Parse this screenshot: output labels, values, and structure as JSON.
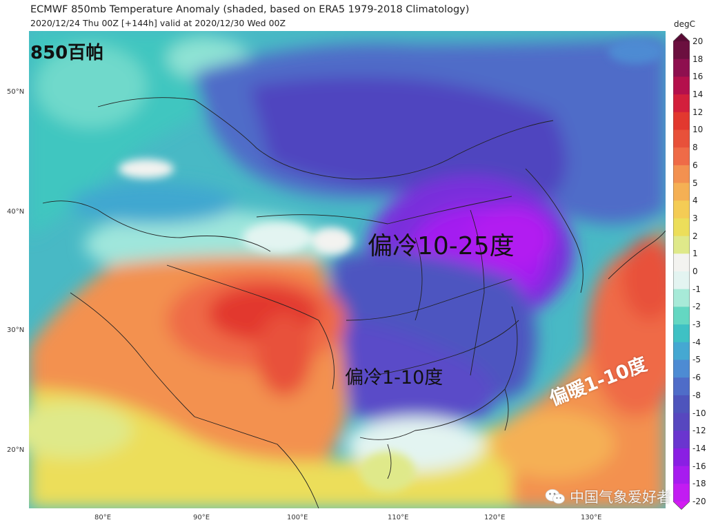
{
  "header": {
    "title": "ECMWF 850mb Temperature Anomaly (shaded, based on ERA5 1979-2018 Climatology)",
    "subtitle": "2020/12/24 Thu 00Z [+144h] valid at 2020/12/30 Wed 00Z"
  },
  "map": {
    "lat_labels": [
      "50°N",
      "40°N",
      "30°N",
      "20°N"
    ],
    "lon_labels": [
      "80°E",
      "90°E",
      "100°E",
      "110°E",
      "120°E",
      "130°E"
    ]
  },
  "colorbar": {
    "unit": "degC",
    "ticks": [
      "20",
      "18",
      "16",
      "14",
      "12",
      "10",
      "8",
      "6",
      "5",
      "4",
      "3",
      "2",
      "1",
      "0",
      "-1",
      "-2",
      "-3",
      "-4",
      "-5",
      "-6",
      "-8",
      "-10",
      "-12",
      "-14",
      "-16",
      "-18",
      "-20"
    ],
    "colors": [
      "#6b0f3f",
      "#8e0f4f",
      "#b4104c",
      "#d31f3c",
      "#e2382f",
      "#e8513a",
      "#ef6b47",
      "#f39150",
      "#f5b054",
      "#f4cc55",
      "#ecde5a",
      "#dfe98a",
      "#f3f3f0",
      "#e3f4f1",
      "#a7ead8",
      "#64d7c2",
      "#3fc1c4",
      "#45a8d2",
      "#4d8bd3",
      "#4f6cc8",
      "#4e54bc",
      "#5747bf",
      "#6a35cf",
      "#8a1fe3",
      "#a71cef",
      "#c21cf2"
    ]
  },
  "overlays": {
    "level": "850百帕",
    "cold_big": "偏冷10-25度",
    "cold_small": "偏冷1-10度",
    "warm": "偏暖1-10度",
    "watermark": "中国气象爱好者"
  }
}
